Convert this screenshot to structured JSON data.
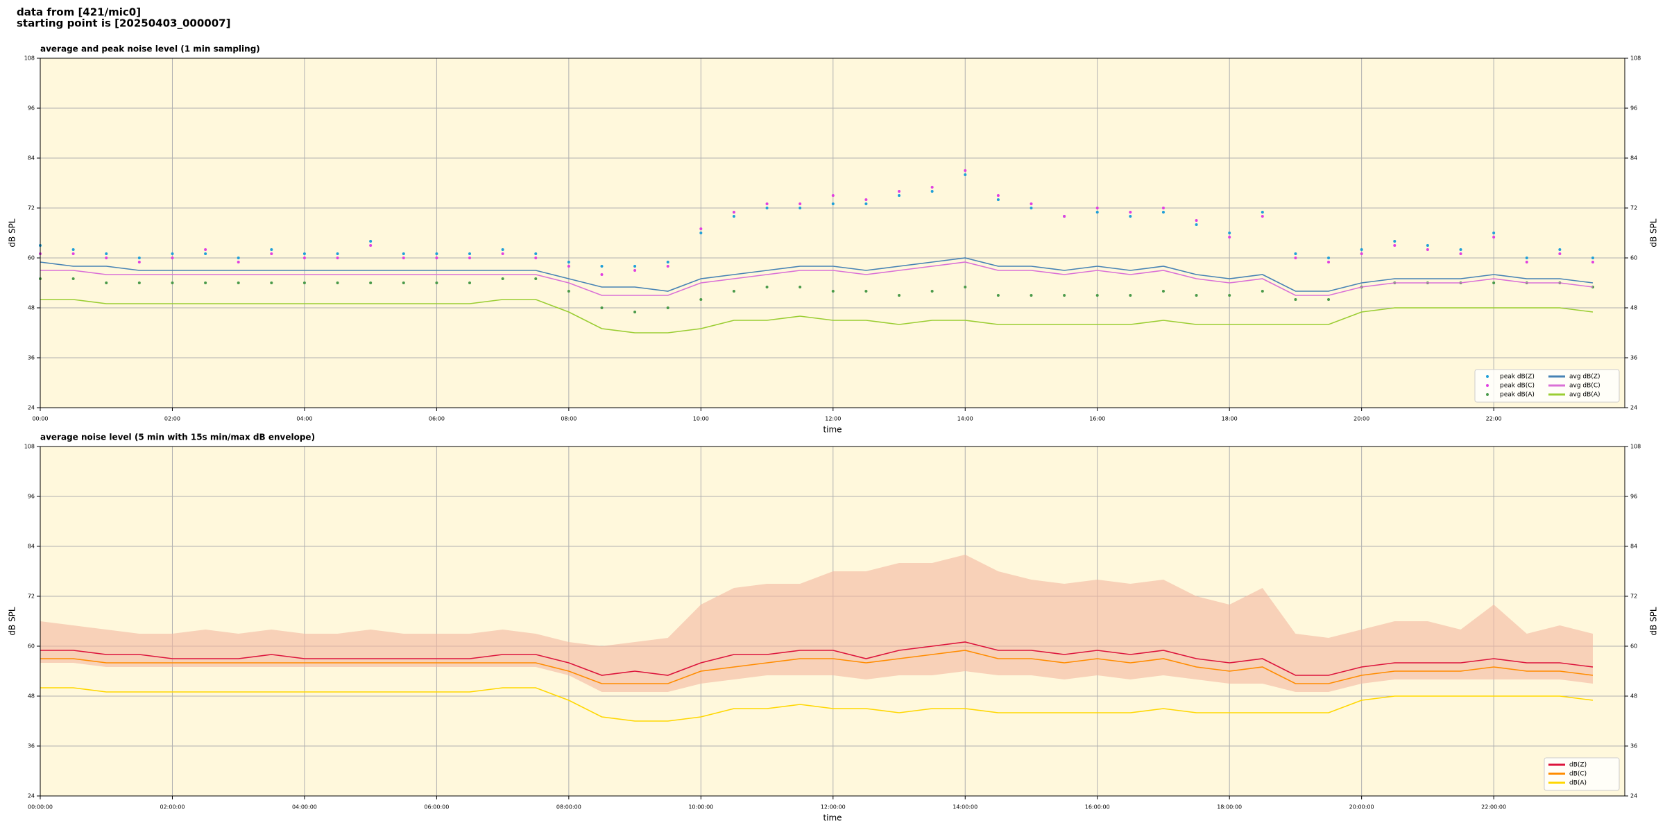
{
  "header": [
    "data from [421/mic0]",
    "starting point is [20250403_000007]"
  ],
  "chart_data": [
    {
      "type": "line",
      "title": "average and peak noise level (1 min sampling)",
      "xlabel": "time",
      "ylabel": "dB SPL",
      "x": [
        "00:00",
        "00:30",
        "01:00",
        "01:30",
        "02:00",
        "02:30",
        "03:00",
        "03:30",
        "04:00",
        "04:30",
        "05:00",
        "05:30",
        "06:00",
        "06:30",
        "07:00",
        "07:30",
        "08:00",
        "08:30",
        "09:00",
        "09:30",
        "10:00",
        "10:30",
        "11:00",
        "11:30",
        "12:00",
        "12:30",
        "13:00",
        "13:30",
        "14:00",
        "14:30",
        "15:00",
        "15:30",
        "16:00",
        "16:30",
        "17:00",
        "17:30",
        "18:00",
        "18:30",
        "19:00",
        "19:30",
        "20:00",
        "20:30",
        "21:00",
        "21:30",
        "22:00",
        "22:30",
        "23:00",
        "23:30"
      ],
      "xlim": [
        "00:00",
        "23:59"
      ],
      "xticks": [
        "00:00",
        "02:00",
        "04:00",
        "06:00",
        "08:00",
        "10:00",
        "12:00",
        "14:00",
        "16:00",
        "18:00",
        "20:00",
        "22:00"
      ],
      "ylim": [
        24,
        108
      ],
      "yticks": [
        24,
        36,
        48,
        60,
        72,
        84,
        96,
        108
      ],
      "grid": true,
      "background": "#fff8dc",
      "legend": "lower right",
      "legend_columns": 2,
      "series": [
        {
          "name": "peak dB(Z)",
          "kind": "points",
          "color": "#1f9fd8",
          "values": [
            63,
            62,
            61,
            60,
            61,
            61,
            60,
            62,
            61,
            61,
            64,
            61,
            61,
            61,
            62,
            61,
            59,
            58,
            58,
            59,
            66,
            70,
            72,
            72,
            73,
            73,
            75,
            76,
            80,
            74,
            72,
            70,
            71,
            70,
            71,
            68,
            66,
            71,
            61,
            60,
            62,
            64,
            63,
            62,
            66,
            60,
            62,
            60
          ]
        },
        {
          "name": "peak dB(C)",
          "kind": "points",
          "color": "#e040e0",
          "values": [
            61,
            61,
            60,
            59,
            60,
            62,
            59,
            61,
            60,
            60,
            63,
            60,
            60,
            60,
            61,
            60,
            58,
            56,
            57,
            58,
            67,
            71,
            73,
            73,
            75,
            74,
            76,
            77,
            81,
            75,
            73,
            70,
            72,
            71,
            72,
            69,
            65,
            70,
            60,
            59,
            61,
            63,
            62,
            61,
            65,
            59,
            61,
            59
          ]
        },
        {
          "name": "peak dB(A)",
          "kind": "points",
          "color": "#4a9a4a",
          "values": [
            55,
            55,
            54,
            54,
            54,
            54,
            54,
            54,
            54,
            54,
            54,
            54,
            54,
            54,
            55,
            55,
            52,
            48,
            47,
            48,
            50,
            52,
            53,
            53,
            52,
            52,
            51,
            52,
            53,
            51,
            51,
            51,
            51,
            51,
            52,
            51,
            51,
            52,
            50,
            50,
            53,
            54,
            54,
            54,
            54,
            54,
            54,
            53
          ]
        },
        {
          "name": "avg dB(Z)",
          "kind": "line",
          "color": "#4682b4",
          "values": [
            59,
            58,
            58,
            57,
            57,
            57,
            57,
            57,
            57,
            57,
            57,
            57,
            57,
            57,
            57,
            57,
            55,
            53,
            53,
            52,
            55,
            56,
            57,
            58,
            58,
            57,
            58,
            59,
            60,
            58,
            58,
            57,
            58,
            57,
            58,
            56,
            55,
            56,
            52,
            52,
            54,
            55,
            55,
            55,
            56,
            55,
            55,
            54
          ]
        },
        {
          "name": "avg dB(C)",
          "kind": "line",
          "color": "#da70d6",
          "values": [
            57,
            57,
            56,
            56,
            56,
            56,
            56,
            56,
            56,
            56,
            56,
            56,
            56,
            56,
            56,
            56,
            54,
            51,
            51,
            51,
            54,
            55,
            56,
            57,
            57,
            56,
            57,
            58,
            59,
            57,
            57,
            56,
            57,
            56,
            57,
            55,
            54,
            55,
            51,
            51,
            53,
            54,
            54,
            54,
            55,
            54,
            54,
            53
          ]
        },
        {
          "name": "avg dB(A)",
          "kind": "line",
          "color": "#9acd32",
          "values": [
            50,
            50,
            49,
            49,
            49,
            49,
            49,
            49,
            49,
            49,
            49,
            49,
            49,
            49,
            50,
            50,
            47,
            43,
            42,
            42,
            43,
            45,
            45,
            46,
            45,
            45,
            44,
            45,
            45,
            44,
            44,
            44,
            44,
            44,
            45,
            44,
            44,
            44,
            44,
            44,
            47,
            48,
            48,
            48,
            48,
            48,
            48,
            47
          ]
        }
      ]
    },
    {
      "type": "line",
      "title": "average noise level (5 min with 15s min/max dB envelope)",
      "xlabel": "time",
      "ylabel": "dB SPL",
      "x": [
        "00:00:00",
        "00:30:00",
        "01:00:00",
        "01:30:00",
        "02:00:00",
        "02:30:00",
        "03:00:00",
        "03:30:00",
        "04:00:00",
        "04:30:00",
        "05:00:00",
        "05:30:00",
        "06:00:00",
        "06:30:00",
        "07:00:00",
        "07:30:00",
        "08:00:00",
        "08:30:00",
        "09:00:00",
        "09:30:00",
        "10:00:00",
        "10:30:00",
        "11:00:00",
        "11:30:00",
        "12:00:00",
        "12:30:00",
        "13:00:00",
        "13:30:00",
        "14:00:00",
        "14:30:00",
        "15:00:00",
        "15:30:00",
        "16:00:00",
        "16:30:00",
        "17:00:00",
        "17:30:00",
        "18:00:00",
        "18:30:00",
        "19:00:00",
        "19:30:00",
        "20:00:00",
        "20:30:00",
        "21:00:00",
        "21:30:00",
        "22:00:00",
        "22:30:00",
        "23:00:00",
        "23:30:00"
      ],
      "xlim": [
        "00:00:00",
        "23:59:00"
      ],
      "xticks": [
        "00:00:00",
        "02:00:00",
        "04:00:00",
        "06:00:00",
        "08:00:00",
        "10:00:00",
        "12:00:00",
        "14:00:00",
        "16:00:00",
        "18:00:00",
        "20:00:00",
        "22:00:00"
      ],
      "ylim": [
        24,
        108
      ],
      "yticks": [
        24,
        36,
        48,
        60,
        72,
        84,
        96,
        108
      ],
      "grid": true,
      "background": "#fff8dc",
      "legend": "lower right",
      "legend_columns": 1,
      "envelope": {
        "color": "#f4b8a0",
        "max": [
          66,
          65,
          64,
          63,
          63,
          64,
          63,
          64,
          63,
          63,
          64,
          63,
          63,
          63,
          64,
          63,
          61,
          60,
          61,
          62,
          70,
          74,
          75,
          75,
          78,
          78,
          80,
          80,
          82,
          78,
          76,
          75,
          76,
          75,
          76,
          72,
          70,
          74,
          63,
          62,
          64,
          66,
          66,
          64,
          70,
          63,
          65,
          63
        ],
        "min": [
          56,
          56,
          55,
          55,
          55,
          55,
          55,
          55,
          55,
          55,
          55,
          55,
          55,
          55,
          55,
          55,
          53,
          49,
          49,
          49,
          51,
          52,
          53,
          53,
          53,
          52,
          53,
          53,
          54,
          53,
          53,
          52,
          53,
          52,
          53,
          52,
          51,
          51,
          49,
          49,
          51,
          52,
          52,
          52,
          52,
          52,
          52,
          51
        ]
      },
      "series": [
        {
          "name": "dB(Z)",
          "kind": "line",
          "color": "#dc143c",
          "values": [
            59,
            59,
            58,
            58,
            57,
            57,
            57,
            58,
            57,
            57,
            57,
            57,
            57,
            57,
            58,
            58,
            56,
            53,
            54,
            53,
            56,
            58,
            58,
            59,
            59,
            57,
            59,
            60,
            61,
            59,
            59,
            58,
            59,
            58,
            59,
            57,
            56,
            57,
            53,
            53,
            55,
            56,
            56,
            56,
            57,
            56,
            56,
            55
          ]
        },
        {
          "name": "dB(C)",
          "kind": "line",
          "color": "#ff8c00",
          "values": [
            57,
            57,
            56,
            56,
            56,
            56,
            56,
            56,
            56,
            56,
            56,
            56,
            56,
            56,
            56,
            56,
            54,
            51,
            51,
            51,
            54,
            55,
            56,
            57,
            57,
            56,
            57,
            58,
            59,
            57,
            57,
            56,
            57,
            56,
            57,
            55,
            54,
            55,
            51,
            51,
            53,
            54,
            54,
            54,
            55,
            54,
            54,
            53
          ]
        },
        {
          "name": "dB(A)",
          "kind": "line",
          "color": "#ffd700",
          "values": [
            50,
            50,
            49,
            49,
            49,
            49,
            49,
            49,
            49,
            49,
            49,
            49,
            49,
            49,
            50,
            50,
            47,
            43,
            42,
            42,
            43,
            45,
            45,
            46,
            45,
            45,
            44,
            45,
            45,
            44,
            44,
            44,
            44,
            44,
            45,
            44,
            44,
            44,
            44,
            44,
            47,
            48,
            48,
            48,
            48,
            48,
            48,
            47
          ]
        }
      ]
    }
  ]
}
